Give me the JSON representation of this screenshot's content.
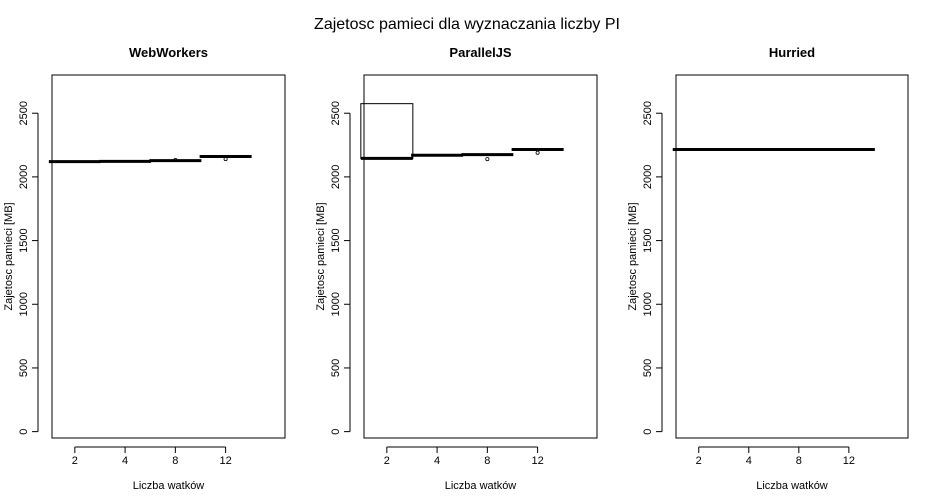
{
  "chart_data": {
    "title": "Zajetosc pamieci dla wyznaczania liczby PI",
    "panels": [
      {
        "type": "box",
        "title": "WebWorkers",
        "xlabel": "Liczba watków",
        "ylabel": "Zajetosc pamieci [MB]",
        "categories": [
          "2",
          "4",
          "8",
          "12"
        ],
        "ylim": [
          -50,
          2800
        ],
        "yticks": [
          0,
          500,
          1000,
          1500,
          2000,
          2500
        ],
        "boxes": [
          {
            "min": 2120,
            "q1": 2120,
            "median": 2120,
            "q3": 2120,
            "max": 2120,
            "outliers": []
          },
          {
            "min": 2122,
            "q1": 2122,
            "median": 2122,
            "q3": 2122,
            "max": 2122,
            "outliers": []
          },
          {
            "min": 2128,
            "q1": 2128,
            "median": 2128,
            "q3": 2128,
            "max": 2128,
            "outliers": [
              2133
            ]
          },
          {
            "min": 2160,
            "q1": 2160,
            "median": 2160,
            "q3": 2160,
            "max": 2160,
            "outliers": [
              2140
            ]
          }
        ]
      },
      {
        "type": "box",
        "title": "ParallelJS",
        "xlabel": "Liczba watków",
        "ylabel": "Zajetosc pamieci [MB]",
        "categories": [
          "2",
          "4",
          "8",
          "12"
        ],
        "ylim": [
          -50,
          2800
        ],
        "yticks": [
          0,
          500,
          1000,
          1500,
          2000,
          2500
        ],
        "boxes": [
          {
            "min": 2145,
            "q1": 2145,
            "median": 2145,
            "q3": 2575,
            "max": 2575,
            "outliers": []
          },
          {
            "min": 2170,
            "q1": 2170,
            "median": 2170,
            "q3": 2170,
            "max": 2170,
            "outliers": []
          },
          {
            "min": 2175,
            "q1": 2175,
            "median": 2175,
            "q3": 2175,
            "max": 2175,
            "outliers": [
              2140
            ]
          },
          {
            "min": 2215,
            "q1": 2215,
            "median": 2215,
            "q3": 2215,
            "max": 2215,
            "outliers": [
              2190
            ]
          }
        ]
      },
      {
        "type": "box",
        "title": "Hurried",
        "xlabel": "Liczba watków",
        "ylabel": "Zajetosc pamieci [MB]",
        "categories": [
          "2",
          "4",
          "8",
          "12"
        ],
        "ylim": [
          -50,
          2800
        ],
        "yticks": [
          0,
          500,
          1000,
          1500,
          2000,
          2500
        ],
        "boxes": [
          {
            "min": 2215,
            "q1": 2215,
            "median": 2215,
            "q3": 2215,
            "max": 2215,
            "outliers": []
          },
          {
            "min": 2215,
            "q1": 2215,
            "median": 2215,
            "q3": 2215,
            "max": 2215,
            "outliers": []
          },
          {
            "min": 2215,
            "q1": 2215,
            "median": 2215,
            "q3": 2215,
            "max": 2215,
            "outliers": []
          },
          {
            "min": 2215,
            "q1": 2215,
            "median": 2215,
            "q3": 2215,
            "max": 2215,
            "outliers": []
          }
        ]
      }
    ]
  }
}
